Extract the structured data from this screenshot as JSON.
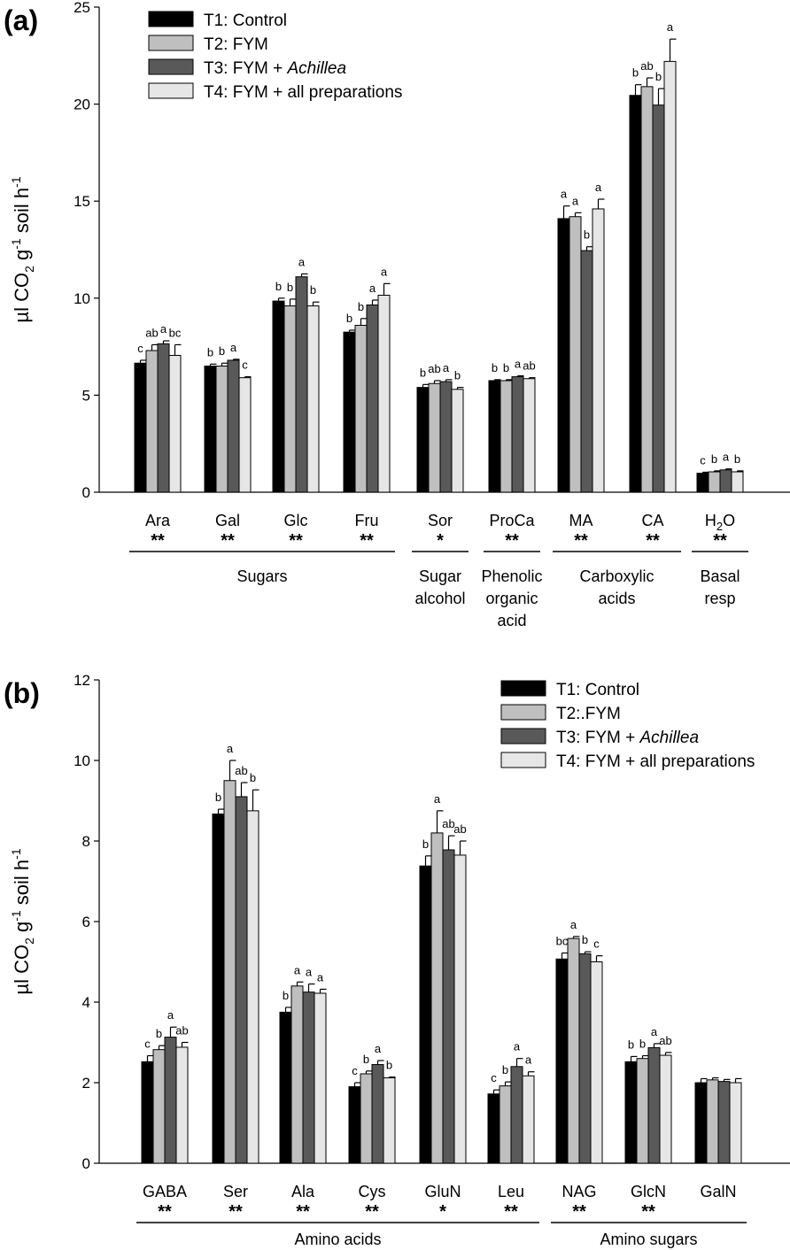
{
  "chart_data": [
    {
      "type": "bar",
      "panel_label": "(a)",
      "ylabel": {
        "base": "µl CO",
        "sub": "2",
        "mid": " g",
        "sup1": "-1",
        "mid2": " soil h",
        "sup2": "-1"
      },
      "ylim": [
        0,
        25
      ],
      "yticks": [
        0,
        5,
        10,
        15,
        20,
        25
      ],
      "legend_position": "top-left",
      "colors": [
        "#000000",
        "#bfbfbf",
        "#595959",
        "#e6e6e6"
      ],
      "series": [
        {
          "name": "T1: Control",
          "name_plain": "T1: Control",
          "name_italic": "",
          "values": [
            6.65,
            6.5,
            9.85,
            8.25,
            5.4,
            5.75,
            14.1,
            20.45,
            0.98
          ],
          "errors": [
            0.15,
            0.1,
            0.15,
            0.1,
            0.15,
            0.05,
            0.65,
            0.55,
            0.05
          ],
          "letters": [
            "c",
            "b",
            "b",
            "b",
            "b",
            "b",
            "a",
            "b",
            "c"
          ]
        },
        {
          "name": "T2: FYM",
          "name_plain": "T2: FYM",
          "name_italic": "",
          "values": [
            7.3,
            6.5,
            9.6,
            8.6,
            5.6,
            5.75,
            14.2,
            20.9,
            1.05
          ],
          "errors": [
            0.3,
            0.15,
            0.35,
            0.35,
            0.15,
            0.05,
            0.2,
            0.45,
            0.05
          ],
          "letters": [
            "ab",
            "b",
            "b",
            "b",
            "ab",
            "b",
            "a",
            "ab",
            "b"
          ]
        },
        {
          "name": "T3: FYM + Achillea",
          "name_plain": "T3: FYM + ",
          "name_italic": "Achillea",
          "values": [
            7.65,
            6.8,
            11.1,
            9.65,
            5.7,
            5.95,
            12.45,
            19.95,
            1.15
          ],
          "errors": [
            0.15,
            0.05,
            0.15,
            0.25,
            0.1,
            0.05,
            0.2,
            0.85,
            0.05
          ],
          "letters": [
            "a",
            "a",
            "a",
            "a",
            "a",
            "a",
            "b",
            "b",
            "a"
          ]
        },
        {
          "name": "T4: FYM + all preparations",
          "name_plain": "T4: FYM + all preparations",
          "name_italic": "",
          "values": [
            7.05,
            5.9,
            9.6,
            10.15,
            5.3,
            5.85,
            14.6,
            22.2,
            1.05
          ],
          "errors": [
            0.55,
            0.05,
            0.2,
            0.6,
            0.1,
            0.05,
            0.5,
            1.15,
            0.05
          ],
          "letters": [
            "bc",
            "c",
            "b",
            "a",
            "b",
            "ab",
            "a",
            "a",
            "b"
          ]
        }
      ],
      "categories": [
        {
          "label": "Ara",
          "sub": "",
          "sig": "**"
        },
        {
          "label": "Gal",
          "sub": "",
          "sig": "**"
        },
        {
          "label": "Glc",
          "sub": "",
          "sig": "**"
        },
        {
          "label": "Fru",
          "sub": "",
          "sig": "**"
        },
        {
          "label": "Sor",
          "sub": "",
          "sig": "*"
        },
        {
          "label": "ProCa",
          "sub": "",
          "sig": "**"
        },
        {
          "label": "MA",
          "sub": "",
          "sig": "**"
        },
        {
          "label": "CA",
          "sub": "",
          "sig": "**"
        },
        {
          "label": "H",
          "sub": "2",
          "post": "O",
          "sig": "**"
        }
      ],
      "groups": [
        {
          "lines": [
            "Sugars"
          ],
          "start": 0,
          "end": 3
        },
        {
          "lines": [
            "Sugar",
            "alcohol"
          ],
          "start": 4,
          "end": 4
        },
        {
          "lines": [
            "Phenolic",
            "organic",
            "acid"
          ],
          "start": 5,
          "end": 5
        },
        {
          "lines": [
            "Carboxylic",
            "acids"
          ],
          "start": 6,
          "end": 7
        },
        {
          "lines": [
            "Basal",
            "resp"
          ],
          "start": 8,
          "end": 8
        }
      ]
    },
    {
      "type": "bar",
      "panel_label": "(b)",
      "ylabel": {
        "base": "µl CO",
        "sub": "2",
        "mid": " g",
        "sup1": "-1",
        "mid2": " soil h",
        "sup2": "-1"
      },
      "ylim": [
        0,
        12
      ],
      "yticks": [
        0,
        2,
        4,
        6,
        8,
        10,
        12
      ],
      "legend_position": "top-right",
      "colors": [
        "#000000",
        "#bfbfbf",
        "#595959",
        "#e6e6e6"
      ],
      "series": [
        {
          "name": "T1: Control",
          "name_plain": "T1: Control",
          "name_italic": "",
          "values": [
            2.52,
            8.67,
            3.75,
            1.9,
            7.38,
            1.72,
            5.07,
            2.52,
            2.0
          ],
          "errors": [
            0.15,
            0.12,
            0.12,
            0.1,
            0.25,
            0.1,
            0.15,
            0.13,
            0.1
          ],
          "letters": [
            "c",
            "b",
            "b",
            "c",
            "b",
            "c",
            "bc",
            "b",
            ""
          ]
        },
        {
          "name": "T2:.FYM",
          "name_plain": "T2:.FYM",
          "name_italic": "",
          "values": [
            2.82,
            9.5,
            4.4,
            2.22,
            8.2,
            1.92,
            5.58,
            2.6,
            2.07
          ],
          "errors": [
            0.1,
            0.5,
            0.1,
            0.07,
            0.55,
            0.1,
            0.05,
            0.07,
            0.05
          ],
          "letters": [
            "b",
            "a",
            "a",
            "b",
            "a",
            "b",
            "a",
            "b",
            ""
          ]
        },
        {
          "name": "T3: FYM + Achillea",
          "name_plain": "T3: FYM + ",
          "name_italic": "Achillea",
          "values": [
            3.13,
            9.1,
            4.25,
            2.45,
            7.78,
            2.4,
            5.2,
            2.87,
            2.03
          ],
          "errors": [
            0.25,
            0.35,
            0.2,
            0.1,
            0.35,
            0.2,
            0.05,
            0.1,
            0.05
          ],
          "letters": [
            "a",
            "ab",
            "a",
            "a",
            "ab",
            "a",
            "b",
            "a",
            ""
          ]
        },
        {
          "name": "T4: FYM + all preparations",
          "name_plain": "T4: FYM + all preparations",
          "name_italic": "",
          "values": [
            2.88,
            8.75,
            4.22,
            2.12,
            7.65,
            2.17,
            5.0,
            2.68,
            2.0
          ],
          "errors": [
            0.12,
            0.52,
            0.1,
            0.02,
            0.35,
            0.1,
            0.15,
            0.07,
            0.1
          ],
          "letters": [
            "ab",
            "b",
            "a",
            "b",
            "ab",
            "a",
            "c",
            "ab",
            ""
          ]
        }
      ],
      "categories": [
        {
          "label": "GABA",
          "sub": "",
          "sig": "**"
        },
        {
          "label": "Ser",
          "sub": "",
          "sig": "**"
        },
        {
          "label": "Ala",
          "sub": "",
          "sig": "**"
        },
        {
          "label": "Cys",
          "sub": "",
          "sig": "**"
        },
        {
          "label": "GluN",
          "sub": "",
          "sig": "*"
        },
        {
          "label": "Leu",
          "sub": "",
          "sig": "**"
        },
        {
          "label": "NAG",
          "sub": "",
          "sig": "**"
        },
        {
          "label": "GlcN",
          "sub": "",
          "sig": "**"
        },
        {
          "label": "GalN",
          "sub": "",
          "sig": ""
        }
      ],
      "groups": [
        {
          "lines": [
            "Amino acids"
          ],
          "start": 0,
          "end": 5
        },
        {
          "lines": [
            "Amino sugars"
          ],
          "start": 6,
          "end": 8
        }
      ]
    }
  ]
}
